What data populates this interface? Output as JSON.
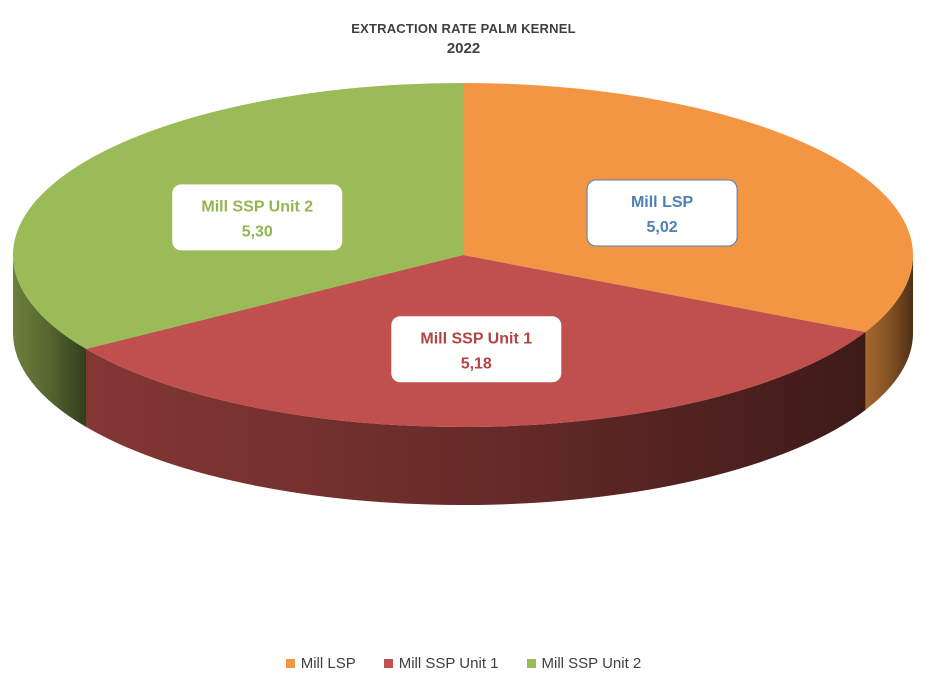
{
  "chart_data": {
    "type": "pie",
    "title": "EXTRACTION RATE PALM KERNEL",
    "subtitle": "2022",
    "legend_position": "bottom",
    "slices": [
      {
        "name": "Mill LSP",
        "value": 5.02,
        "label": "5,02",
        "color": "#F39644",
        "label_color": "#4E7FB5"
      },
      {
        "name": "Mill SSP Unit 1",
        "value": 5.18,
        "label": "5,18",
        "color": "#C0504D",
        "label_color": "#B04543"
      },
      {
        "name": "Mill SSP Unit 2",
        "value": 5.3,
        "label": "5,30",
        "color": "#9BBB59",
        "label_color": "#92B650"
      }
    ]
  }
}
